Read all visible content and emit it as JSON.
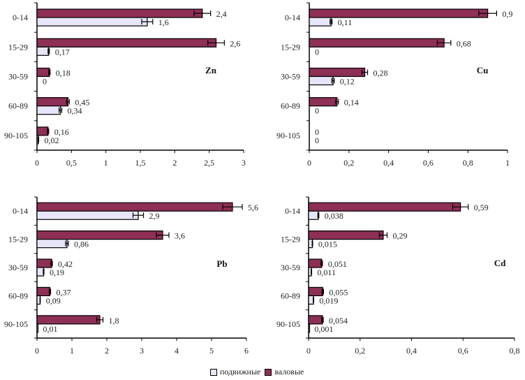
{
  "colors": {
    "mobile": "#e6e6f8",
    "total": "#8e2f55",
    "axis": "#000000"
  },
  "legend": [
    {
      "key": "mobile",
      "label": "подвижные"
    },
    {
      "key": "total",
      "label": "валовые"
    }
  ],
  "chart_data": [
    {
      "type": "bar",
      "orientation": "horizontal",
      "title": "Zn",
      "categories": [
        "0-14",
        "15-29",
        "30-59",
        "60-89",
        "90-105"
      ],
      "series": [
        {
          "name": "валовые",
          "key": "total",
          "values": [
            2.4,
            2.6,
            0.18,
            0.45,
            0.16
          ],
          "labels": [
            "2,4",
            "2,6",
            "0,18",
            "0,45",
            "0,16"
          ],
          "errors": [
            0.12,
            0.12,
            0.01,
            0.02,
            0.01
          ]
        },
        {
          "name": "подвижные",
          "key": "mobile",
          "values": [
            1.6,
            0.17,
            0,
            0.34,
            0.02
          ],
          "labels": [
            "1,6",
            "0,17",
            "0",
            "0,34",
            "0,02"
          ],
          "errors": [
            0.08,
            0.01,
            0,
            0.02,
            0.005
          ]
        }
      ],
      "xlim": [
        0,
        3
      ],
      "xticks": [
        0,
        0.5,
        1,
        1.5,
        2,
        2.5,
        3
      ],
      "xtick_labels": [
        "0",
        "0,5",
        "1",
        "1,5",
        "2",
        "2,5",
        "3"
      ],
      "legend_position": "bottom-center"
    },
    {
      "type": "bar",
      "orientation": "horizontal",
      "title": "Cu",
      "categories": [
        "0-14",
        "15-29",
        "30-59",
        "60-89",
        "90-105"
      ],
      "series": [
        {
          "name": "валовые",
          "key": "total",
          "values": [
            0.9,
            0.68,
            0.28,
            0.14,
            0
          ],
          "labels": [
            "0,9",
            "0,68",
            "0,28",
            "0,14",
            "0"
          ],
          "errors": [
            0.045,
            0.034,
            0.014,
            0.007,
            0
          ]
        },
        {
          "name": "подвижные",
          "key": "mobile",
          "values": [
            0.11,
            0,
            0.12,
            0,
            0
          ],
          "labels": [
            "0,11",
            "0",
            "0,12",
            "0",
            "0"
          ],
          "errors": [
            0.005,
            0,
            0.006,
            0,
            0
          ]
        }
      ],
      "xlim": [
        0,
        1
      ],
      "xticks": [
        0,
        0.2,
        0.4,
        0.6,
        0.8,
        1
      ],
      "xtick_labels": [
        "0",
        "0,2",
        "0,4",
        "0,6",
        "0,8",
        "1"
      ],
      "legend_position": "bottom-center"
    },
    {
      "type": "bar",
      "orientation": "horizontal",
      "title": "Pb",
      "categories": [
        "0-14",
        "15-29",
        "30-59",
        "60-89",
        "90-105"
      ],
      "series": [
        {
          "name": "валовые",
          "key": "total",
          "values": [
            5.6,
            3.6,
            0.42,
            0.37,
            1.8
          ],
          "labels": [
            "5,6",
            "3,6",
            "0,42",
            "0,37",
            "1,8"
          ],
          "errors": [
            0.28,
            0.18,
            0.02,
            0.02,
            0.09
          ]
        },
        {
          "name": "подвижные",
          "key": "mobile",
          "values": [
            2.9,
            0.86,
            0.19,
            0.09,
            0.01
          ],
          "labels": [
            "2,9",
            "0,86",
            "0,19",
            "0,09",
            "0,01"
          ],
          "errors": [
            0.15,
            0.04,
            0.01,
            0.005,
            0
          ]
        }
      ],
      "xlim": [
        0,
        6
      ],
      "xticks": [
        0,
        1,
        2,
        3,
        4,
        5,
        6
      ],
      "xtick_labels": [
        "0",
        "1",
        "2",
        "3",
        "4",
        "5",
        "6"
      ],
      "legend_position": "bottom-center"
    },
    {
      "type": "bar",
      "orientation": "horizontal",
      "title": "Cd",
      "categories": [
        "0-14",
        "15-29",
        "30-59",
        "60-89",
        "90-105"
      ],
      "series": [
        {
          "name": "валовые",
          "key": "total",
          "values": [
            0.59,
            0.29,
            0.051,
            0.055,
            0.054
          ],
          "labels": [
            "0,59",
            "0,29",
            "0,051",
            "0,055",
            "0,054"
          ],
          "errors": [
            0.03,
            0.015,
            0.003,
            0.003,
            0.003
          ]
        },
        {
          "name": "подвижные",
          "key": "mobile",
          "values": [
            0.038,
            0.015,
            0.011,
            0.019,
            0.001
          ],
          "labels": [
            "0,038",
            "0,015",
            "0,011",
            "0,019",
            "0,001"
          ],
          "errors": [
            0.002,
            0.001,
            0.001,
            0.001,
            0
          ]
        }
      ],
      "xlim": [
        0,
        0.8
      ],
      "xticks": [
        0,
        0.2,
        0.4,
        0.6,
        0.8
      ],
      "xtick_labels": [
        "0",
        "0,2",
        "0,4",
        "0,6",
        "0,8"
      ],
      "legend_position": "bottom-center"
    }
  ]
}
